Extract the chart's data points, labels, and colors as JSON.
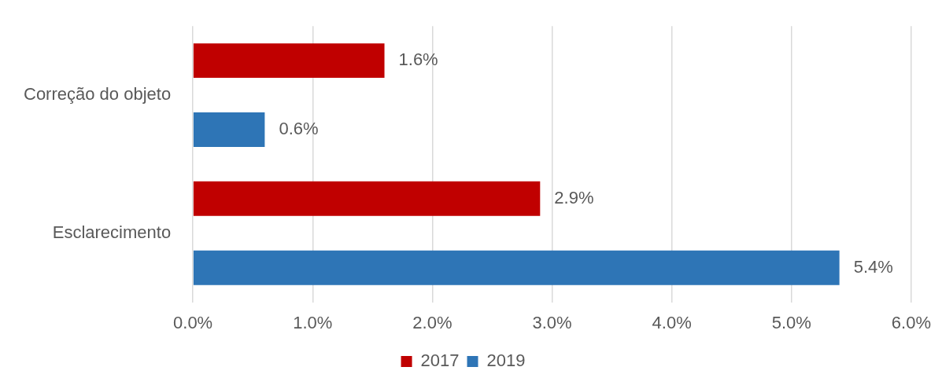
{
  "chart_data": {
    "type": "bar",
    "orientation": "horizontal",
    "categories": [
      "Correção do objeto",
      "Esclarecimento"
    ],
    "series": [
      {
        "name": "2017",
        "color": "#c00000",
        "values": [
          1.6,
          2.9
        ],
        "value_labels": [
          "1.6%",
          "2.9%"
        ]
      },
      {
        "name": "2019",
        "color": "#2e75b6",
        "values": [
          0.6,
          5.4
        ],
        "value_labels": [
          "0.6%",
          "5.4%"
        ]
      }
    ],
    "xlim": [
      0,
      6
    ],
    "xticks": [
      {
        "value": 0,
        "label": "0.0%"
      },
      {
        "value": 1,
        "label": "1.0%"
      },
      {
        "value": 2,
        "label": "2.0%"
      },
      {
        "value": 3,
        "label": "3.0%"
      },
      {
        "value": 4,
        "label": "4.0%"
      },
      {
        "value": 5,
        "label": "5.0%"
      },
      {
        "value": 6,
        "label": "6.0%"
      }
    ],
    "grid": "x",
    "legend": "bottom"
  }
}
